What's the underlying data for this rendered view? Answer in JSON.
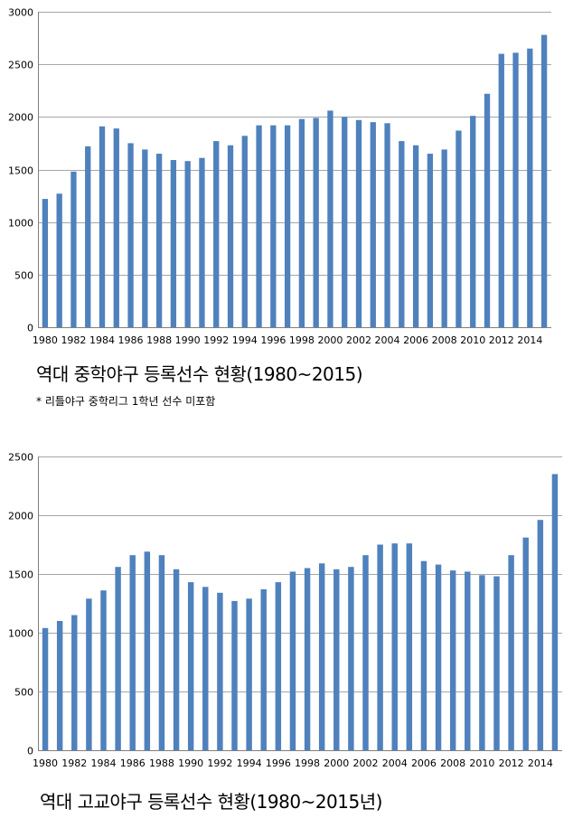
{
  "chart_data": [
    {
      "type": "bar",
      "title": "역대 중학야구 등록선수 현황(1980~2015)",
      "note": "* 리틀야구 중학리그 1학년 선수 미포함",
      "xlabel": "",
      "ylabel": "",
      "ylim": [
        0,
        3000
      ],
      "yticks": [
        0,
        500,
        1000,
        1500,
        2000,
        2500,
        3000
      ],
      "color": "#4f81bd",
      "categories": [
        "1980",
        "1981",
        "1982",
        "1983",
        "1984",
        "1985",
        "1986",
        "1987",
        "1988",
        "1989",
        "1990",
        "1991",
        "1992",
        "1993",
        "1994",
        "1995",
        "1996",
        "1997",
        "1998",
        "1999",
        "2000",
        "2001",
        "2002",
        "2003",
        "2004",
        "2005",
        "2006",
        "2007",
        "2008",
        "2009",
        "2010",
        "2011",
        "2012",
        "2013",
        "2014",
        "2015"
      ],
      "xtick_labels": [
        "1980",
        "",
        "1982",
        "",
        "1984",
        "",
        "1986",
        "",
        "1988",
        "",
        "1990",
        "",
        "1992",
        "",
        "1994",
        "",
        "1996",
        "",
        "1998",
        "",
        "2000",
        "",
        "2002",
        "",
        "2004",
        "",
        "2006",
        "",
        "2008",
        "",
        "2010",
        "",
        "2012",
        "",
        "2014",
        ""
      ],
      "values": [
        1220,
        1270,
        1480,
        1720,
        1910,
        1890,
        1750,
        1690,
        1650,
        1590,
        1580,
        1610,
        1770,
        1730,
        1820,
        1920,
        1920,
        1920,
        1980,
        1990,
        2060,
        2000,
        1970,
        1950,
        1940,
        1770,
        1730,
        1650,
        1690,
        1870,
        2010,
        2220,
        2600,
        2610,
        2650,
        2780
      ]
    },
    {
      "type": "bar",
      "title": "역대 고교야구 등록선수 현황(1980~2015년)",
      "xlabel": "",
      "ylabel": "",
      "ylim": [
        0,
        2500
      ],
      "yticks": [
        0,
        500,
        1000,
        1500,
        2000,
        2500
      ],
      "color": "#4f81bd",
      "categories": [
        "1980",
        "1981",
        "1982",
        "1983",
        "1984",
        "1985",
        "1986",
        "1987",
        "1988",
        "1989",
        "1990",
        "1991",
        "1992",
        "1993",
        "1994",
        "1995",
        "1996",
        "1997",
        "1998",
        "1999",
        "2000",
        "2001",
        "2002",
        "2003",
        "2004",
        "2005",
        "2006",
        "2007",
        "2008",
        "2009",
        "2010",
        "2011",
        "2012",
        "2013",
        "2014",
        "2015"
      ],
      "xtick_labels": [
        "1980",
        "",
        "1982",
        "",
        "1984",
        "",
        "1986",
        "",
        "1988",
        "",
        "1990",
        "",
        "1992",
        "",
        "1994",
        "",
        "1996",
        "",
        "1998",
        "",
        "2000",
        "",
        "2002",
        "",
        "2004",
        "",
        "2006",
        "",
        "2008",
        "",
        "2010",
        "",
        "2012",
        "",
        "2014",
        ""
      ],
      "values": [
        1040,
        1100,
        1150,
        1290,
        1360,
        1560,
        1660,
        1690,
        1660,
        1540,
        1430,
        1390,
        1340,
        1270,
        1290,
        1370,
        1430,
        1520,
        1550,
        1590,
        1540,
        1560,
        1660,
        1750,
        1760,
        1760,
        1610,
        1580,
        1530,
        1520,
        1490,
        1480,
        1660,
        1810,
        1960,
        2350
      ]
    }
  ]
}
